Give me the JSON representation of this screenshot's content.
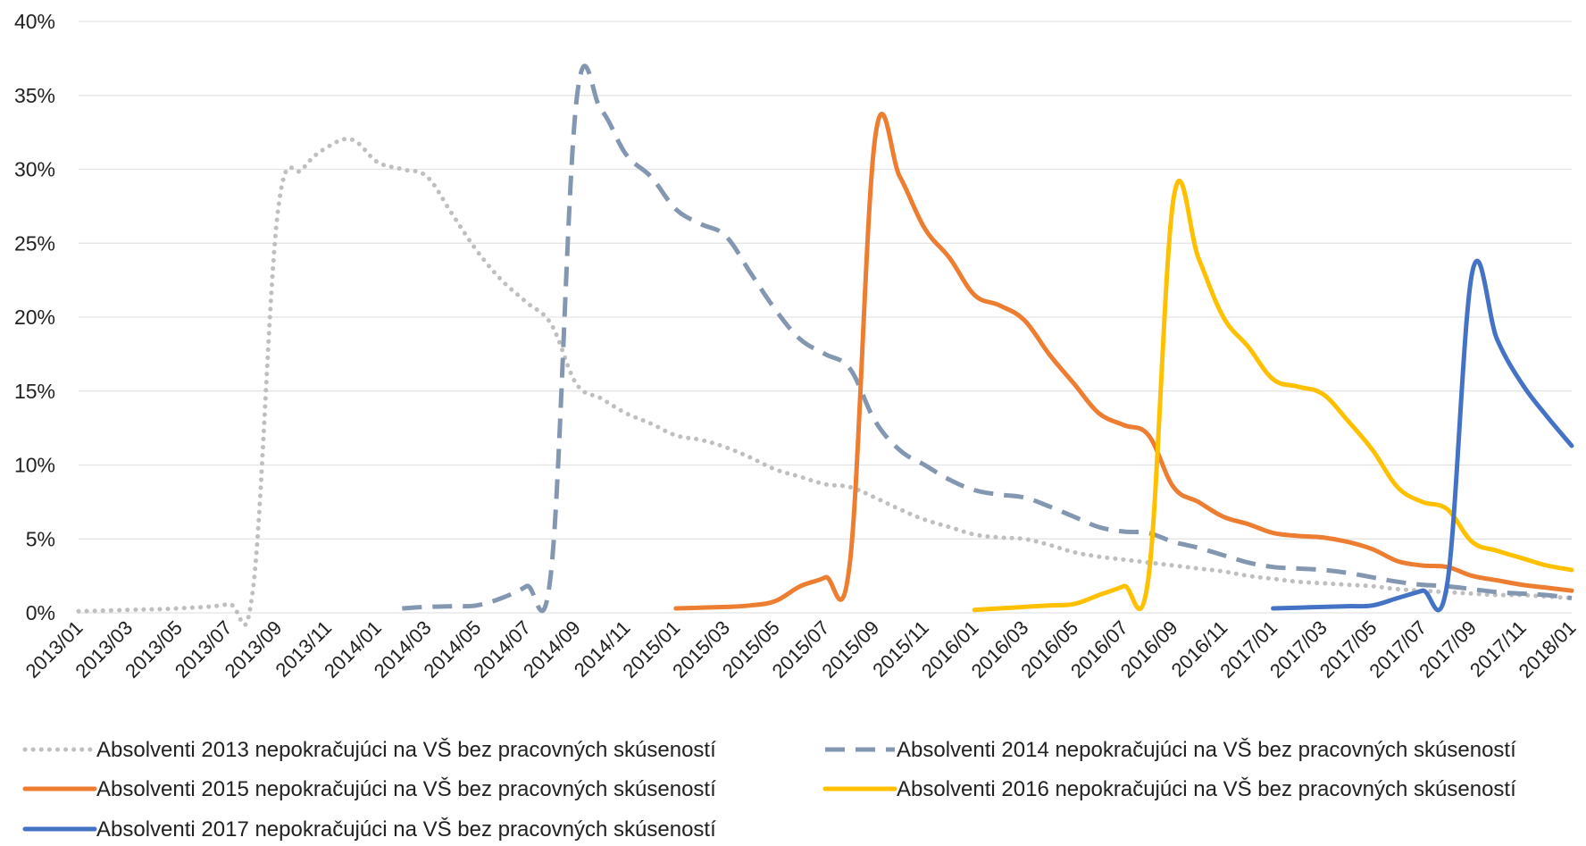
{
  "chart_data": {
    "type": "line",
    "title": "",
    "xlabel": "",
    "ylabel": "",
    "ylim": [
      0,
      40
    ],
    "y_ticks": [
      "0%",
      "5%",
      "10%",
      "15%",
      "20%",
      "25%",
      "30%",
      "35%",
      "40%"
    ],
    "x_ticks": [
      "2013/01",
      "2013/03",
      "2013/05",
      "2013/07",
      "2013/09",
      "2013/11",
      "2014/01",
      "2014/03",
      "2014/05",
      "2014/07",
      "2014/09",
      "2014/11",
      "2015/01",
      "2015/03",
      "2015/05",
      "2015/07",
      "2015/09",
      "2015/11",
      "2016/01",
      "2016/03",
      "2016/05",
      "2016/07",
      "2016/09",
      "2016/11",
      "2017/01",
      "2017/03",
      "2017/05",
      "2017/07",
      "2017/09",
      "2017/11",
      "2018/01"
    ],
    "x_axis": {
      "start": "2013/01",
      "end": "2018/01",
      "unit": "month"
    },
    "grid": "horizontal",
    "legend_position": "bottom",
    "series": [
      {
        "name": "Absolventi 2013 nepokračujúci na VŠ bez pracovných skúseností",
        "color": "#BFBFBF",
        "style": "dotted",
        "x": [
          "2013/01",
          "2013/03",
          "2013/05",
          "2013/07",
          "2013/08",
          "2013/09",
          "2013/10",
          "2013/11",
          "2013/12",
          "2014/01",
          "2014/02",
          "2014/03",
          "2014/04",
          "2014/05",
          "2014/06",
          "2014/07",
          "2014/08",
          "2014/09",
          "2014/10",
          "2014/11",
          "2014/12",
          "2015/01",
          "2015/02",
          "2015/03",
          "2015/04",
          "2015/05",
          "2015/06",
          "2015/07",
          "2015/08",
          "2015/09",
          "2015/10",
          "2015/11",
          "2015/12",
          "2016/01",
          "2016/02",
          "2016/03",
          "2016/04",
          "2016/05",
          "2016/06",
          "2016/07",
          "2016/08",
          "2016/09",
          "2016/10",
          "2016/11",
          "2016/12",
          "2017/01",
          "2017/02",
          "2017/03",
          "2017/04",
          "2017/05",
          "2017/06",
          "2017/07",
          "2017/08",
          "2017/09",
          "2017/10",
          "2017/11",
          "2017/12",
          "2018/01"
        ],
        "values": [
          0.1,
          0.2,
          0.3,
          0.6,
          1.5,
          27,
          30,
          31.5,
          32,
          30.5,
          30,
          29.5,
          27,
          24.5,
          22.5,
          21,
          19.5,
          15.5,
          14.5,
          13.5,
          12.8,
          12.0,
          11.7,
          11.2,
          10.5,
          9.7,
          9.2,
          8.7,
          8.5,
          7.8,
          7.0,
          6.3,
          5.8,
          5.3,
          5.1,
          5.0,
          4.6,
          4.1,
          3.8,
          3.6,
          3.4,
          3.2,
          3.0,
          2.8,
          2.5,
          2.3,
          2.1,
          2.0,
          1.9,
          1.8,
          1.6,
          1.5,
          1.4,
          1.3,
          1.2,
          1.2,
          1.1,
          1.0
        ]
      },
      {
        "name": "Absolventi 2014 nepokračujúci na VŠ bez pracovných skúseností",
        "color": "#8497B0",
        "style": "dashed",
        "x": [
          "2014/02",
          "2014/03",
          "2014/04",
          "2014/05",
          "2014/06",
          "2014/07",
          "2014/08",
          "2014/09",
          "2014/10",
          "2014/11",
          "2014/12",
          "2015/01",
          "2015/02",
          "2015/03",
          "2015/04",
          "2015/05",
          "2015/06",
          "2015/07",
          "2015/08",
          "2015/09",
          "2015/10",
          "2015/11",
          "2015/12",
          "2016/01",
          "2016/02",
          "2016/03",
          "2016/04",
          "2016/05",
          "2016/06",
          "2016/07",
          "2016/08",
          "2016/09",
          "2016/10",
          "2016/11",
          "2016/12",
          "2017/01",
          "2017/02",
          "2017/03",
          "2017/04",
          "2017/05",
          "2017/06",
          "2017/07",
          "2017/08",
          "2017/09",
          "2017/10",
          "2017/11",
          "2017/12",
          "2018/01"
        ],
        "values": [
          0.3,
          0.4,
          0.45,
          0.5,
          1.0,
          1.8,
          3.0,
          34.5,
          34.0,
          31.0,
          29.5,
          27.3,
          26.3,
          25.5,
          23.0,
          20.5,
          18.5,
          17.5,
          16.5,
          13.0,
          11.0,
          10.0,
          9.0,
          8.3,
          8.0,
          7.8,
          7.2,
          6.5,
          5.8,
          5.5,
          5.4,
          4.8,
          4.4,
          3.9,
          3.4,
          3.1,
          3.0,
          2.9,
          2.7,
          2.4,
          2.1,
          1.9,
          1.8,
          1.6,
          1.4,
          1.3,
          1.2,
          1.0
        ]
      },
      {
        "name": "Absolventi 2015 nepokračujúci na VŠ bez pracovných skúseností",
        "color": "#ED7D31",
        "style": "solid",
        "x": [
          "2015/01",
          "2015/02",
          "2015/03",
          "2015/04",
          "2015/05",
          "2015/06",
          "2015/07",
          "2015/08",
          "2015/09",
          "2015/10",
          "2015/11",
          "2015/12",
          "2016/01",
          "2016/02",
          "2016/03",
          "2016/04",
          "2016/05",
          "2016/06",
          "2016/07",
          "2016/08",
          "2016/09",
          "2016/10",
          "2016/11",
          "2016/12",
          "2017/01",
          "2017/02",
          "2017/03",
          "2017/04",
          "2017/05",
          "2017/06",
          "2017/07",
          "2017/08",
          "2017/09",
          "2017/10",
          "2017/11",
          "2017/12",
          "2018/01"
        ],
        "values": [
          0.3,
          0.35,
          0.4,
          0.5,
          0.8,
          1.8,
          2.4,
          3.5,
          32.0,
          29.5,
          26.0,
          24.0,
          21.5,
          20.8,
          19.8,
          17.5,
          15.5,
          13.5,
          12.7,
          12.0,
          8.5,
          7.5,
          6.5,
          6.0,
          5.4,
          5.2,
          5.1,
          4.8,
          4.3,
          3.5,
          3.2,
          3.1,
          2.5,
          2.2,
          1.9,
          1.7,
          1.5
        ]
      },
      {
        "name": "Absolventi 2016 nepokračujúci na VŠ bez pracovných skúseností",
        "color": "#FFC000",
        "style": "solid",
        "x": [
          "2016/01",
          "2016/02",
          "2016/03",
          "2016/04",
          "2016/05",
          "2016/06",
          "2016/07",
          "2016/08",
          "2016/09",
          "2016/10",
          "2016/11",
          "2016/12",
          "2017/01",
          "2017/02",
          "2017/03",
          "2017/04",
          "2017/05",
          "2017/06",
          "2017/07",
          "2017/08",
          "2017/09",
          "2017/10",
          "2017/11",
          "2017/12",
          "2018/01"
        ],
        "values": [
          0.2,
          0.3,
          0.4,
          0.5,
          0.6,
          1.2,
          1.8,
          2.5,
          28.0,
          24.0,
          20.0,
          18.0,
          15.8,
          15.3,
          14.8,
          13.0,
          11.0,
          8.5,
          7.5,
          7.0,
          4.8,
          4.2,
          3.7,
          3.2,
          2.9
        ]
      },
      {
        "name": "Absolventi 2017 nepokračujúci na VŠ bez pracovných skúseností",
        "color": "#4472C4",
        "style": "solid",
        "x": [
          "2017/01",
          "2017/02",
          "2017/03",
          "2017/04",
          "2017/05",
          "2017/06",
          "2017/07",
          "2017/08",
          "2017/09",
          "2017/10",
          "2017/11",
          "2017/12",
          "2018/01"
        ],
        "values": [
          0.3,
          0.35,
          0.4,
          0.45,
          0.5,
          1.0,
          1.5,
          2.0,
          23.0,
          18.5,
          15.5,
          13.3,
          11.3
        ]
      }
    ]
  }
}
